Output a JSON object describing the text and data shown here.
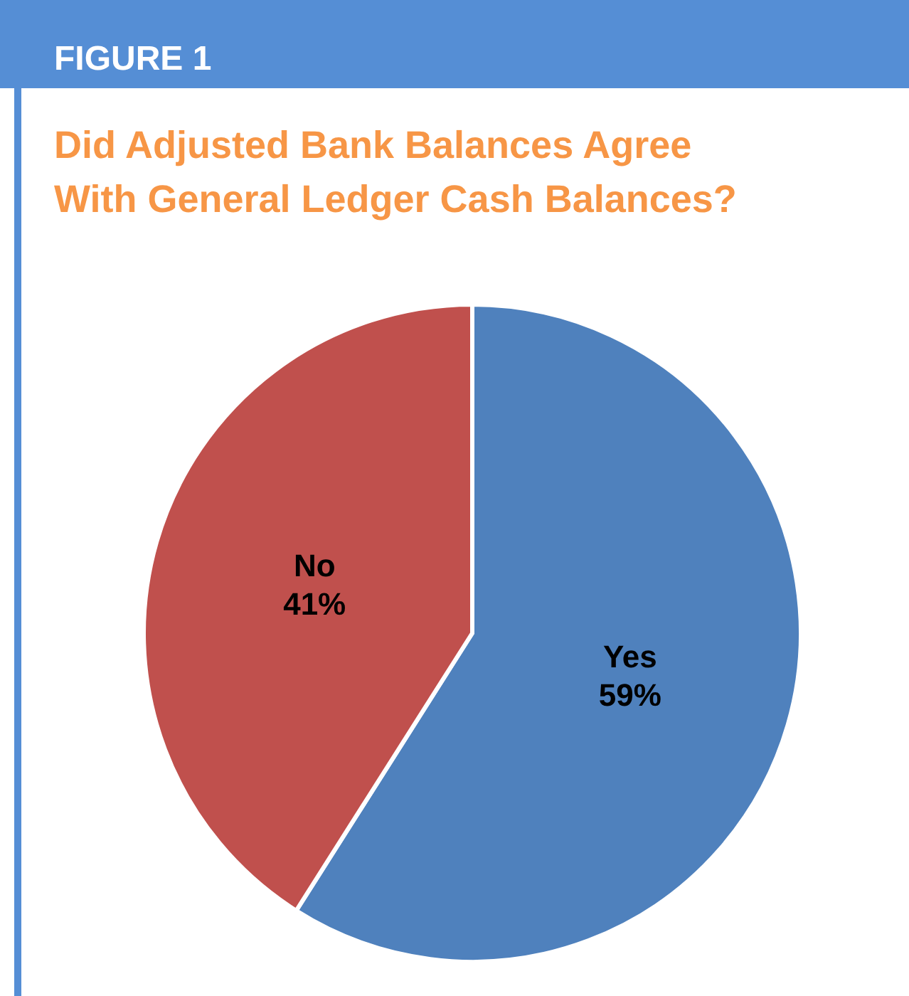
{
  "chart_data": {
    "type": "pie",
    "title": "Did Adjusted Bank Balances Agree With General Ledger Cash Balances?",
    "annotations": [
      "FIGURE 1"
    ],
    "categories": [
      "Yes",
      "No"
    ],
    "values": [
      59,
      41
    ],
    "colors": [
      "#4f81bd",
      "#c0504d"
    ],
    "value_labels": [
      "59%",
      "41%"
    ],
    "legend": false
  }
}
